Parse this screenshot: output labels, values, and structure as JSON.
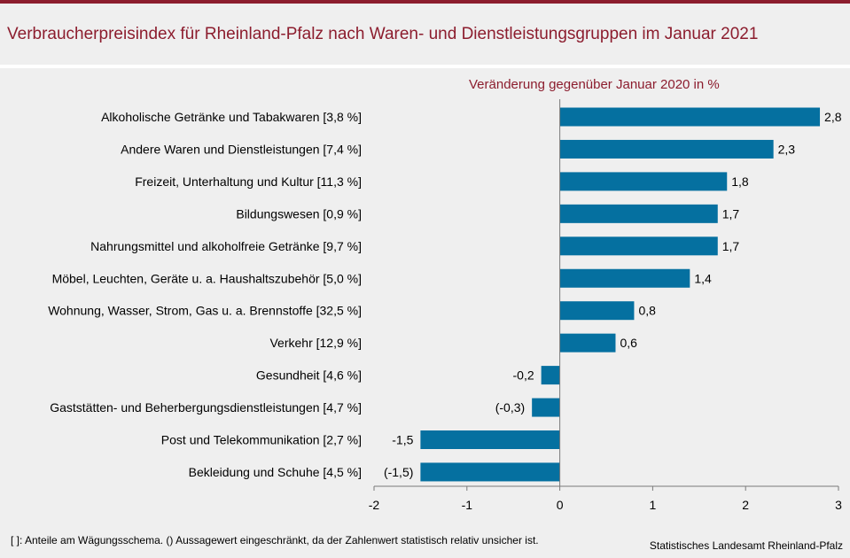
{
  "colors": {
    "accent": "#8c1d2e",
    "bar": "#0570a0",
    "background": "#efefef"
  },
  "chart_data": {
    "type": "bar",
    "orientation": "horizontal",
    "title": "Verbraucherpreisindex für Rheinland-Pfalz nach Waren- und Dienstleistungsgruppen im Januar 2021",
    "subtitle": "Veränderung  gegenüber  Januar 2020 in %",
    "categories": [
      "Alkoholische Getränke und Tabakwaren [3,8 %]",
      "Andere Waren und Dienstleistungen [7,4 %]",
      "Freizeit, Unterhaltung und Kultur [11,3 %]",
      "Bildungswesen [0,9 %]",
      "Nahrungsmittel und alkoholfreie Getränke [9,7 %]",
      "Möbel, Leuchten, Geräte u. a. Haushaltszubehör  [5,0 %]",
      "Wohnung, Wasser, Strom, Gas u. a. Brennstoffe [32,5 %]",
      "Verkehr [12,9 %]",
      "Gesundheit [4,6 %]",
      "Gaststätten- und Beherbergungsdienstleistungen [4,7 %]",
      "Post und Telekommunikation [2,7 %]",
      "Bekleidung und Schuhe [4,5 %]"
    ],
    "values": [
      2.8,
      2.3,
      1.8,
      1.7,
      1.7,
      1.4,
      0.8,
      0.6,
      -0.2,
      -0.3,
      -1.5,
      -1.5
    ],
    "data_labels": [
      "2,8",
      "2,3",
      "1,8",
      "1,7",
      "1,7",
      "1,4",
      "0,8",
      "0,6",
      "-0,2",
      "(-0,3)",
      "-1,5",
      "(-1,5)"
    ],
    "xlim": [
      -2,
      3
    ],
    "xticks": [
      -2,
      -1,
      0,
      1,
      2,
      3
    ],
    "xtick_labels": [
      "-2",
      "-1",
      "0",
      "1",
      "2",
      "3"
    ],
    "grid": false,
    "legend": "none"
  },
  "footnote": "[ ]: Anteile am Wägungsschema. () Aussagewert eingeschränkt, da der Zahlenwert statistisch relativ unsicher ist.",
  "source": "Statistisches Landesamt Rheinland-Pfalz"
}
